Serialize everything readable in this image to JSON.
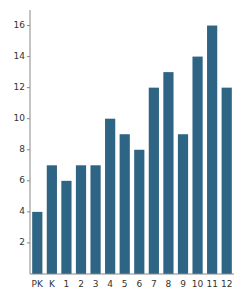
{
  "chart_data": {
    "type": "bar",
    "categories": [
      "PK",
      "K",
      "1",
      "2",
      "3",
      "4",
      "5",
      "6",
      "7",
      "8",
      "9",
      "10",
      "11",
      "12"
    ],
    "values": [
      4,
      7,
      6,
      7,
      7,
      10,
      9,
      8,
      12,
      13,
      9,
      14,
      16,
      12
    ],
    "color": "#2e6584",
    "ylim": [
      0,
      17
    ],
    "yticks": [
      2,
      4,
      6,
      8,
      10,
      12,
      14,
      16
    ],
    "grid": false
  }
}
